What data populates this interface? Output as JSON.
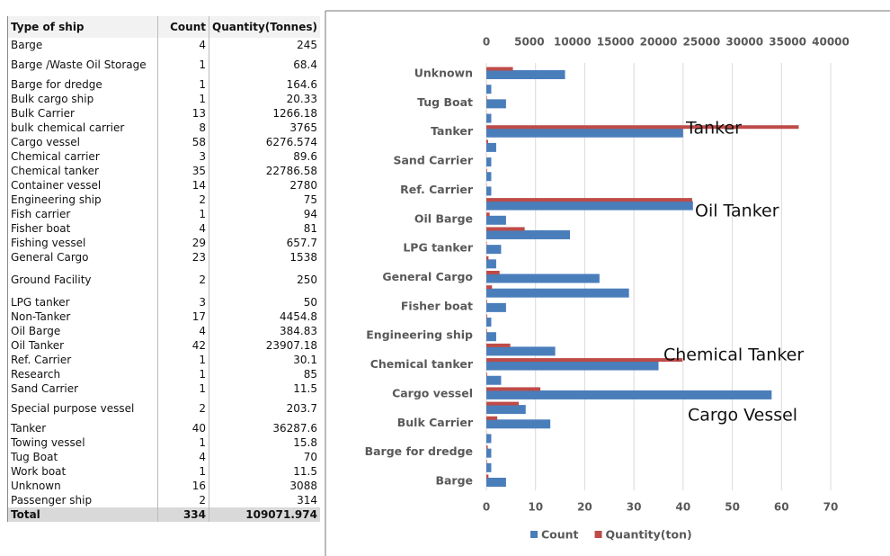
{
  "table": {
    "header": [
      "Type of ship",
      "Count",
      "Quantity(Tonnes)"
    ],
    "rows": [
      [
        "Barge",
        4,
        245
      ],
      [
        "Barge /Waste Oil Storage",
        1,
        68.4
      ],
      [
        "Barge for dredge",
        1,
        164.6
      ],
      [
        "Bulk cargo ship",
        1,
        20.33
      ],
      [
        "Bulk Carrier",
        13,
        1266.18
      ],
      [
        "bulk chemical carrier",
        8,
        3765
      ],
      [
        "Cargo vessel",
        58,
        6276.574
      ],
      [
        "Chemical carrier",
        3,
        89.6
      ],
      [
        "Chemical tanker",
        35,
        22786.58
      ],
      [
        "Container vessel",
        14,
        2780
      ],
      [
        "Engineering ship",
        2,
        75
      ],
      [
        "Fish carrier",
        1,
        94
      ],
      [
        "Fisher boat",
        4,
        81
      ],
      [
        "Fishing vessel",
        29,
        657.7
      ],
      [
        "General Cargo",
        23,
        1538
      ],
      [
        "Ground Facility",
        2,
        250
      ],
      [
        "LPG tanker",
        3,
        50
      ],
      [
        "Non-Tanker",
        17,
        4454.8
      ],
      [
        "Oil Barge",
        4,
        384.83
      ],
      [
        "Oil Tanker",
        42,
        23907.18
      ],
      [
        "Ref. Carrier",
        1,
        30.1
      ],
      [
        "Research",
        1,
        85
      ],
      [
        "Sand Carrier",
        1,
        11.5
      ],
      [
        "Special purpose vessel",
        2,
        203.7
      ],
      [
        "Tanker",
        40,
        36287.6
      ],
      [
        "Towing vessel",
        1,
        15.8
      ],
      [
        "Tug Boat",
        4,
        70
      ],
      [
        "Work boat",
        1,
        11.5
      ],
      [
        "Unknown",
        16,
        3088
      ],
      [
        "Passenger ship",
        2,
        314
      ]
    ],
    "total": [
      "Total",
      334,
      109071.974
    ]
  },
  "chart_data": {
    "type": "bar",
    "orientation": "horizontal",
    "categories": [
      "Barge",
      null,
      "Barge for dredge",
      null,
      "Bulk Carrier",
      null,
      "Cargo vessel",
      null,
      "Chemical tanker",
      null,
      "Engineering ship",
      null,
      "Fisher boat",
      null,
      "General Cargo",
      null,
      "LPG tanker",
      null,
      "Oil Barge",
      null,
      "Ref. Carrier",
      null,
      "Sand Carrier",
      null,
      "Tanker",
      null,
      "Tug Boat",
      null,
      "Unknown"
    ],
    "series": [
      {
        "name": "Count",
        "color": "#4a7ebb",
        "values": [
          4,
          1,
          1,
          1,
          13,
          8,
          58,
          3,
          35,
          14,
          2,
          1,
          4,
          29,
          23,
          2,
          3,
          17,
          4,
          42,
          1,
          1,
          1,
          2,
          40,
          1,
          4,
          1,
          16
        ]
      },
      {
        "name": "Quantity(ton)",
        "color": "#be4b48",
        "axis": "x2",
        "values": [
          245,
          68.4,
          164.6,
          20.33,
          1266.18,
          3765,
          6276.574,
          89.6,
          22786.58,
          2780,
          75,
          94,
          81,
          657.7,
          1538,
          250,
          50,
          4454.8,
          384.83,
          23907.18,
          30.1,
          85,
          11.5,
          203.7,
          36287.6,
          15.8,
          70,
          11.5,
          3088
        ]
      }
    ],
    "xlim": [
      0,
      70
    ],
    "xticks": [
      0,
      10,
      20,
      30,
      40,
      50,
      60,
      70
    ],
    "x2lim": [
      0,
      40000
    ],
    "x2ticks": [
      0,
      5000,
      10000,
      15000,
      20000,
      25000,
      30000,
      35000,
      40000
    ],
    "grid": true,
    "legend": "bottom",
    "annotations": [
      "Tanker",
      "Oil Tanker",
      "Chemical Tanker",
      "Cargo Vessel"
    ]
  }
}
